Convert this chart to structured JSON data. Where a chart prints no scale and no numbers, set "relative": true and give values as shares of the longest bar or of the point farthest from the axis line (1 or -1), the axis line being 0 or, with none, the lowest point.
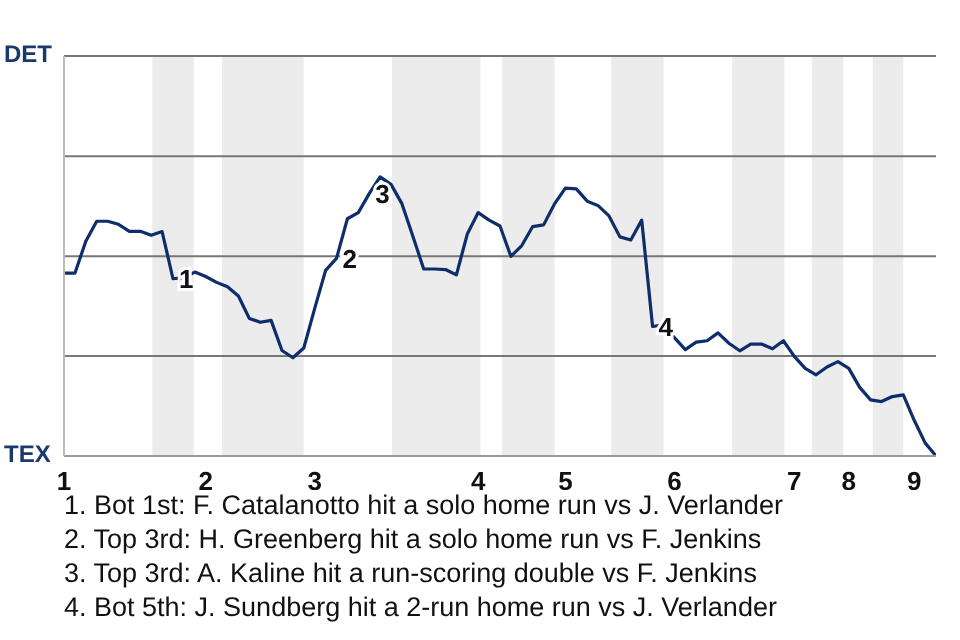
{
  "chart_data": {
    "type": "line",
    "relative": true,
    "categories": [
      "1",
      null,
      null,
      null,
      null,
      null,
      null,
      null,
      null,
      null,
      null,
      null,
      null,
      "2",
      null,
      null,
      null,
      null,
      null,
      null,
      null,
      null,
      null,
      "3",
      null,
      null,
      null,
      null,
      null,
      null,
      null,
      null,
      null,
      null,
      null,
      null,
      null,
      null,
      "4",
      null,
      null,
      null,
      null,
      null,
      null,
      null,
      "5",
      null,
      null,
      null,
      null,
      null,
      null,
      null,
      null,
      null,
      "6",
      null,
      null,
      null,
      null,
      null,
      null,
      null,
      null,
      null,
      null,
      "7",
      null,
      null,
      null,
      null,
      "8",
      null,
      null,
      null,
      null,
      null,
      "9",
      null,
      null
    ],
    "marker": "none",
    "line_style": "solid",
    "ref_lines": [
      {
        "axis": "y",
        "value": 0.358,
        "color": "#777777"
      },
      {
        "axis": "y",
        "value": 0.716,
        "color": "#777777"
      },
      {
        "axis": "y",
        "value": 1.074,
        "color": "#777777"
      },
      {
        "axis": "y",
        "value": 1.433,
        "color": "#777777"
      }
    ],
    "series": [
      {
        "color": "#0d2d6b",
        "values": [
          0.655,
          0.655,
          0.769,
          0.841,
          0.841,
          0.83,
          0.805,
          0.805,
          0.791,
          0.804,
          0.635,
          0.639,
          0.659,
          0.643,
          0.622,
          0.606,
          0.573,
          0.493,
          0.479,
          0.486,
          0.378,
          0.352,
          0.387,
          0.529,
          0.665,
          0.708,
          0.85,
          0.872,
          0.94,
          1,
          0.973,
          0.904,
          0.788,
          0.67,
          0.67,
          0.668,
          0.649,
          0.795,
          0.872,
          0.845,
          0.824,
          0.715,
          0.754,
          0.822,
          0.828,
          0.903,
          0.96,
          0.957,
          0.913,
          0.897,
          0.86,
          0.785,
          0.774,
          0.845,
          0.464,
          0.47,
          0.424,
          0.381,
          0.408,
          0.413,
          0.441,
          0.404,
          0.377,
          0.401,
          0.401,
          0.384,
          0.413,
          0.357,
          0.314,
          0.291,
          0.319,
          0.338,
          0.314,
          0.246,
          0.201,
          0.195,
          0.213,
          0.219,
          0.128,
          0.047,
          0
        ]
      }
    ],
    "annotations": [
      "DET",
      "TEX",
      {
        "text": "1",
        "y": 0.635
      },
      {
        "text": "2",
        "y": 0.708
      },
      {
        "text": "3",
        "y": 0.94
      },
      {
        "text": "4",
        "y": 0.464
      },
      "1. Bot 1st: F. Catalanotto hit a solo home run vs J. Verlander",
      "2. Top 3rd: H. Greenberg hit a solo home run vs F. Jenkins",
      "3. Top 3rd: A. Kaline hit a run-scoring double vs F. Jenkins",
      "4. Bot 5th: J. Sundberg hit a 2-run home run vs J. Verlander"
    ]
  }
}
